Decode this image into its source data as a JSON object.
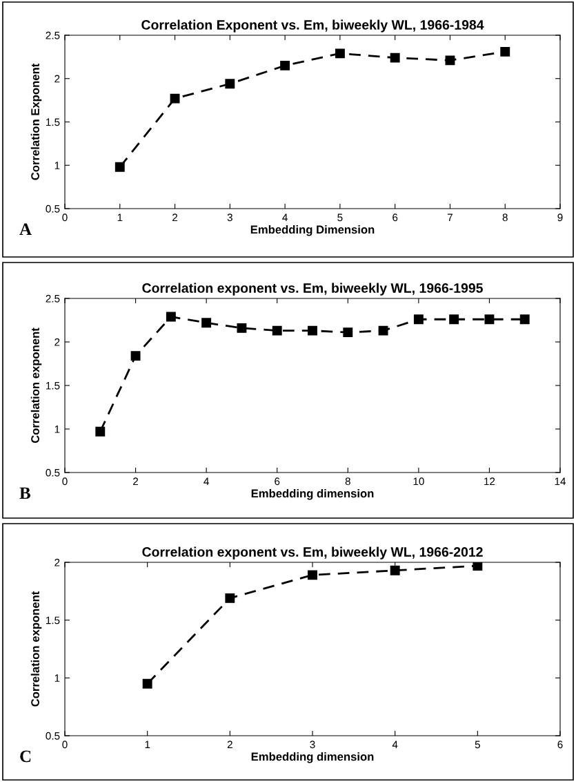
{
  "chart_data": [
    {
      "type": "line",
      "title": "Correlation Exponent vs. Em, biweekly WL, 1966-1984",
      "xlabel": "Embedding Dimension",
      "ylabel": "Correlation Exponent",
      "annotations": [
        "A"
      ],
      "x": [
        1,
        2,
        3,
        4,
        5,
        6,
        7,
        8
      ],
      "series": [
        {
          "color": "#000000",
          "values": [
            0.98,
            1.77,
            1.94,
            2.15,
            2.29,
            2.24,
            2.21,
            2.31
          ]
        }
      ],
      "xlim": [
        0,
        9
      ],
      "xticks": [
        0,
        1,
        2,
        3,
        4,
        5,
        6,
        7,
        8,
        9
      ],
      "ylim": [
        0.5,
        2.5
      ],
      "yticks": [
        0.5,
        1,
        1.5,
        2,
        2.5
      ],
      "marker": "square",
      "line_style": "dashed"
    },
    {
      "type": "line",
      "title": "Correlation exponent vs. Em, biweekly WL, 1966-1995",
      "xlabel": "Embedding dimension",
      "ylabel": "Correlation exponent",
      "annotations": [
        "B"
      ],
      "x": [
        1,
        2,
        3,
        4,
        5,
        6,
        7,
        8,
        9,
        10,
        11,
        12,
        13
      ],
      "series": [
        {
          "color": "#000000",
          "values": [
            0.97,
            1.84,
            2.29,
            2.22,
            2.16,
            2.13,
            2.13,
            2.11,
            2.13,
            2.26,
            2.26,
            2.26,
            2.26
          ]
        }
      ],
      "xlim": [
        0,
        14
      ],
      "xticks": [
        0,
        2,
        4,
        6,
        8,
        10,
        12,
        14
      ],
      "ylim": [
        0.5,
        2.5
      ],
      "yticks": [
        0.5,
        1,
        1.5,
        2,
        2.5
      ],
      "marker": "square",
      "line_style": "dashed"
    },
    {
      "type": "line",
      "title": "Correlation exponent vs. Em, biweekly WL, 1966-2012",
      "xlabel": "Embedding dimension",
      "ylabel": "Correlation exponent",
      "annotations": [
        "C"
      ],
      "x": [
        1,
        2,
        3,
        4,
        5
      ],
      "series": [
        {
          "color": "#000000",
          "values": [
            0.95,
            1.69,
            1.89,
            1.93,
            1.97
          ]
        }
      ],
      "xlim": [
        0,
        6
      ],
      "xticks": [
        0,
        1,
        2,
        3,
        4,
        5,
        6
      ],
      "ylim": [
        0.5,
        2
      ],
      "yticks": [
        0.5,
        1,
        1.5,
        2
      ],
      "marker": "square",
      "line_style": "dashed"
    }
  ]
}
